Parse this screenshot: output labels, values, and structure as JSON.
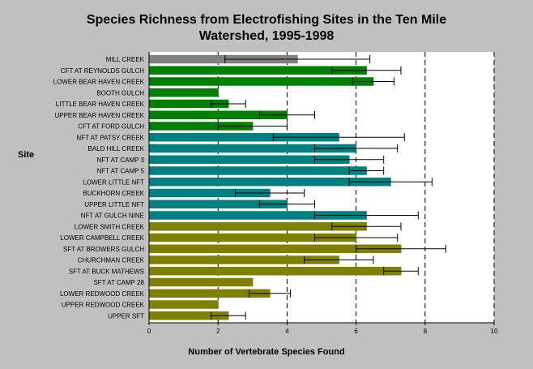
{
  "chart_data": {
    "type": "bar",
    "orientation": "horizontal",
    "title": "Species Richness from Electrofishing Sites in the Ten Mile Watershed, 1995-1998",
    "title_line1": "Species Richness from Electrofishing Sites in the Ten Mile",
    "title_line2": "Watershed, 1995-1998",
    "xlabel": "Number of Vertebrate Species Found",
    "ylabel": "Site",
    "xlim": [
      0,
      10
    ],
    "xticks": [
      "0",
      "2",
      "4",
      "6",
      "8",
      "10"
    ],
    "grid": "dashed vertical lines at 2, 4, 6, 8, 10",
    "categories": [
      "MILL CREEK",
      "CFT AT REYNOLDS GULCH",
      "LOWER BEAR HAVEN CREEK",
      "BOOTH GULCH",
      "LITTLE BEAR HAVEN CREEK",
      "UPPER BEAR HAVEN CREEK",
      "CFT AT FORD GULCH",
      "NFT AT PATSY CREEK",
      "BALD HILL CREEK",
      "NFT AT CAMP 3",
      "NFT AT CAMP 5",
      "LOWER LITTLE NFT",
      "BUCKHORN CREEK",
      "UPPER LITTLE NFT",
      "NFT AT GULCH NINE",
      "LOWER SMITH CREEK",
      "LOWER CAMPBELL CREEK",
      "SFT AT BROWERS GULCH",
      "CHURCHMAN CREEK",
      "SFT AT BUCK MATHEWS",
      "SFT AT CAMP 28",
      "LOWER REDWOOD CREEK",
      "UPPER REDWOOD CREEK",
      "UPPER SFT"
    ],
    "values": [
      4.3,
      6.3,
      6.5,
      2.0,
      2.3,
      4.0,
      3.0,
      5.5,
      6.0,
      5.8,
      6.3,
      7.0,
      3.5,
      4.0,
      6.3,
      6.3,
      6.0,
      7.3,
      5.5,
      7.3,
      3.0,
      3.5,
      2.0,
      2.3
    ],
    "error": [
      2.1,
      1.0,
      0.6,
      0.0,
      0.5,
      0.8,
      1.0,
      1.9,
      1.2,
      1.0,
      0.5,
      1.2,
      1.0,
      0.8,
      1.5,
      1.0,
      1.2,
      1.3,
      1.0,
      0.5,
      0.0,
      0.6,
      0.0,
      0.5
    ],
    "colors": [
      "#808080",
      "#008000",
      "#008000",
      "#008000",
      "#008000",
      "#008000",
      "#008000",
      "#008080",
      "#008080",
      "#008080",
      "#008080",
      "#008080",
      "#008080",
      "#008080",
      "#008080",
      "#808000",
      "#808000",
      "#808000",
      "#808000",
      "#808000",
      "#808000",
      "#808000",
      "#808000",
      "#808000"
    ]
  }
}
